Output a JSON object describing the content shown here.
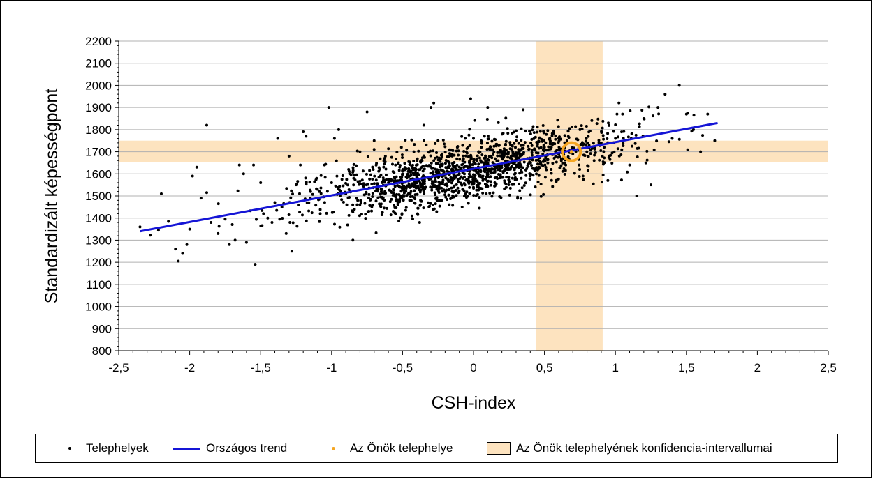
{
  "chart_data": {
    "type": "scatter",
    "xlabel": "CSH-index",
    "ylabel": "Standardizált képességpont",
    "xlim": [
      -2.5,
      2.5
    ],
    "ylim": [
      800,
      2200
    ],
    "x_ticks": [
      "-2,5",
      "-2",
      "-1,5",
      "-1",
      "-0,5",
      "0",
      "0,5",
      "1",
      "1,5",
      "2",
      "2,5"
    ],
    "x_tick_values": [
      -2.5,
      -2,
      -1.5,
      -1,
      -0.5,
      0,
      0.5,
      1,
      1.5,
      2,
      2.5
    ],
    "y_ticks": [
      "800",
      "900",
      "1000",
      "1100",
      "1200",
      "1300",
      "1400",
      "1500",
      "1600",
      "1700",
      "1800",
      "1900",
      "2000",
      "2100",
      "2200"
    ],
    "y_tick_values": [
      800,
      900,
      1000,
      1100,
      1200,
      1300,
      1400,
      1500,
      1600,
      1700,
      1800,
      1900,
      2000,
      2100,
      2200
    ],
    "grid": "horizontal",
    "legend_position": "bottom",
    "series": [
      {
        "name": "Telephelyek",
        "kind": "scatter",
        "color": "#000000",
        "points": [
          [
            -2.35,
            1360
          ],
          [
            -2.22,
            1345
          ],
          [
            -2.2,
            1510
          ],
          [
            -2.15,
            1385
          ],
          [
            -2.1,
            1260
          ],
          [
            -2.08,
            1205
          ],
          [
            -2.05,
            1240
          ],
          [
            -2.02,
            1280
          ],
          [
            -2.0,
            1350
          ],
          [
            -1.98,
            1590
          ],
          [
            -1.95,
            1630
          ],
          [
            -1.92,
            1490
          ],
          [
            -1.88,
            1820
          ],
          [
            -1.88,
            1515
          ],
          [
            -1.85,
            1380
          ],
          [
            -1.8,
            1330
          ],
          [
            -1.75,
            1395
          ],
          [
            -1.72,
            1280
          ],
          [
            -1.68,
            1300
          ],
          [
            -1.65,
            1640
          ],
          [
            -1.62,
            1600
          ],
          [
            -1.6,
            1290
          ],
          [
            -1.55,
            1640
          ],
          [
            -1.5,
            1560
          ],
          [
            -1.48,
            1420
          ],
          [
            -1.45,
            1400
          ],
          [
            -1.42,
            1380
          ],
          [
            -1.4,
            1470
          ],
          [
            -1.38,
            1760
          ],
          [
            -1.35,
            1450
          ],
          [
            -1.32,
            1330
          ],
          [
            -1.3,
            1680
          ],
          [
            -1.28,
            1250
          ],
          [
            -1.25,
            1550
          ],
          [
            -1.22,
            1640
          ],
          [
            -1.2,
            1790
          ],
          [
            -1.18,
            1770
          ],
          [
            -1.15,
            1490
          ],
          [
            -1.1,
            1530
          ],
          [
            -1.08,
            1420
          ],
          [
            -1.05,
            1640
          ],
          [
            -1.02,
            1900
          ],
          [
            -1.0,
            1560
          ],
          [
            -0.98,
            1760
          ],
          [
            -0.95,
            1800
          ],
          [
            -0.9,
            1510
          ],
          [
            -0.88,
            1620
          ],
          [
            -0.85,
            1300
          ],
          [
            -0.82,
            1460
          ],
          [
            -0.8,
            1700
          ],
          [
            -0.75,
            1880
          ],
          [
            -0.7,
            1750
          ],
          [
            -0.65,
            1520
          ],
          [
            -0.6,
            1560
          ],
          [
            -0.55,
            1640
          ],
          [
            -0.5,
            1600
          ],
          [
            -0.45,
            1480
          ],
          [
            -0.42,
            1700
          ],
          [
            -0.38,
            1380
          ],
          [
            -0.35,
            1820
          ],
          [
            -0.3,
            1900
          ],
          [
            -0.28,
            1920
          ],
          [
            -0.25,
            1750
          ],
          [
            -0.2,
            1550
          ],
          [
            -0.15,
            1680
          ],
          [
            -0.1,
            1600
          ],
          [
            -0.08,
            1450
          ],
          [
            -0.05,
            1700
          ],
          [
            -0.02,
            1940
          ],
          [
            0.0,
            1760
          ],
          [
            0.05,
            1660
          ],
          [
            0.08,
            1610
          ],
          [
            0.1,
            1900
          ],
          [
            0.12,
            1680
          ],
          [
            0.15,
            1560
          ],
          [
            0.2,
            1700
          ],
          [
            0.25,
            1620
          ],
          [
            0.3,
            1750
          ],
          [
            0.35,
            1890
          ],
          [
            0.4,
            1590
          ],
          [
            0.45,
            1680
          ],
          [
            0.5,
            1720
          ],
          [
            0.55,
            1570
          ],
          [
            0.6,
            1760
          ],
          [
            0.65,
            1640
          ],
          [
            0.7,
            1690
          ],
          [
            0.75,
            1800
          ],
          [
            0.8,
            1720
          ],
          [
            0.85,
            1660
          ],
          [
            0.9,
            1740
          ],
          [
            0.95,
            1830
          ],
          [
            1.0,
            1760
          ],
          [
            1.05,
            1870
          ],
          [
            1.1,
            1640
          ],
          [
            1.15,
            1500
          ],
          [
            1.2,
            1850
          ],
          [
            1.25,
            1550
          ],
          [
            1.3,
            1900
          ],
          [
            1.35,
            1960
          ],
          [
            1.4,
            1760
          ],
          [
            1.45,
            2000
          ],
          [
            1.5,
            1870
          ],
          [
            1.55,
            1800
          ],
          [
            1.6,
            1700
          ],
          [
            1.65,
            1870
          ],
          [
            1.7,
            1750
          ]
        ]
      },
      {
        "name": "Országos trend",
        "kind": "line",
        "color": "#1515d6",
        "points": [
          [
            -2.35,
            1340
          ],
          [
            1.72,
            1830
          ]
        ]
      },
      {
        "name": "Az Önök telephelye",
        "kind": "highlight",
        "color": "#f5a623",
        "points": [
          [
            0.69,
            1700
          ]
        ]
      }
    ],
    "confidence_interval": {
      "name": "Az Önök telephelyének konfidencia-intervallumai",
      "color": "#fde3bf",
      "x_range": [
        0.44,
        0.91
      ],
      "y_range": [
        1653,
        1750
      ]
    },
    "cloud": {
      "seed": 7,
      "count": 1500,
      "x_mean": -0.05,
      "x_sd": 0.55,
      "x_min": -2.3,
      "x_max": 1.7,
      "trend_slope": 120,
      "trend_intercept": 1620,
      "noise_sd": 70
    }
  },
  "legend": {
    "item1": "Telephelyek",
    "item2": "Országos trend",
    "item3": "Az Önök telephelye",
    "item4": "Az Önök telephelyének konfidencia-intervallumai"
  }
}
